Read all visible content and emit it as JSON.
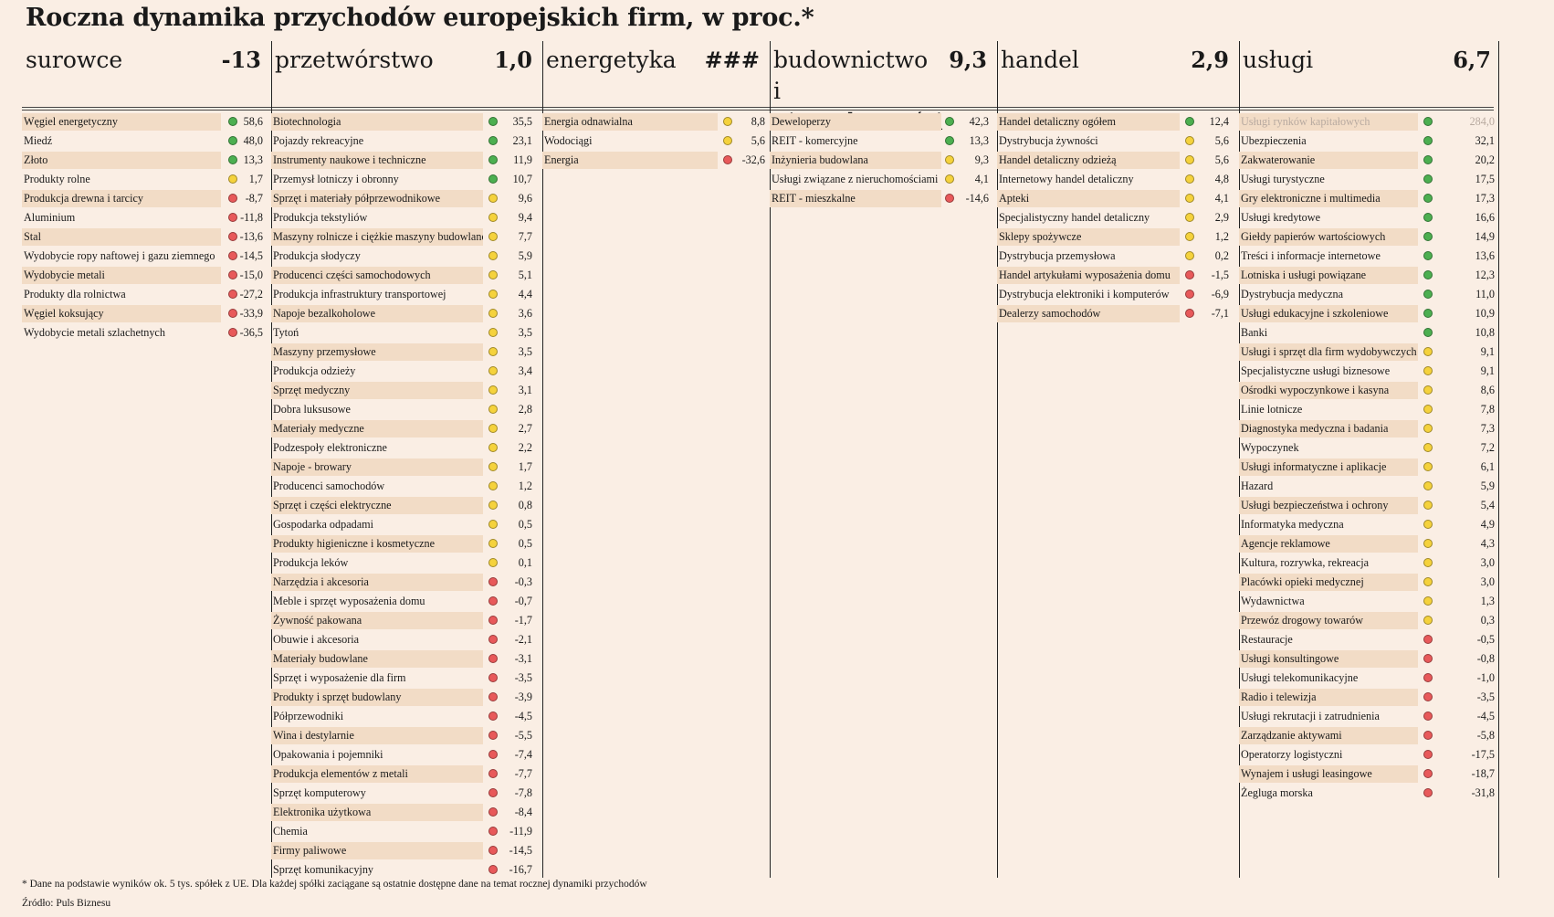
{
  "title": "Roczna dynamika przychodów europejskich firm, w proc.*",
  "colors": {
    "green": "#4caf50",
    "yellow": "#f5d23c",
    "red": "#e8595a",
    "row_shade": "#f2dcc6",
    "background": "#faeee4"
  },
  "columns": [
    {
      "name": "surowce",
      "value": "-13",
      "rows": [
        {
          "label": "Węgiel energetyczny",
          "value": "58,6",
          "status": "green"
        },
        {
          "label": "Miedź",
          "value": "48,0",
          "status": "green"
        },
        {
          "label": "Złoto",
          "value": "13,3",
          "status": "green"
        },
        {
          "label": "Produkty rolne",
          "value": "1,7",
          "status": "yellow"
        },
        {
          "label": "Produkcja drewna i tarcicy",
          "value": "-8,7",
          "status": "red"
        },
        {
          "label": "Aluminium",
          "value": "-11,8",
          "status": "red"
        },
        {
          "label": "Stal",
          "value": "-13,6",
          "status": "red"
        },
        {
          "label": "Wydobycie ropy naftowej i gazu ziemnego",
          "value": "-14,5",
          "status": "red"
        },
        {
          "label": "Wydobycie metali",
          "value": "-15,0",
          "status": "red"
        },
        {
          "label": "Produkty dla rolnictwa",
          "value": "-27,2",
          "status": "red"
        },
        {
          "label": "Węgiel koksujący",
          "value": "-33,9",
          "status": "red"
        },
        {
          "label": "Wydobycie metali szlachetnych",
          "value": "-36,5",
          "status": "red"
        }
      ]
    },
    {
      "name": "przetwórstwo",
      "value": "1,0",
      "rows": [
        {
          "label": "Biotechnologia",
          "value": "35,5",
          "status": "green"
        },
        {
          "label": "Pojazdy rekreacyjne",
          "value": "23,1",
          "status": "green"
        },
        {
          "label": "Instrumenty naukowe i techniczne",
          "value": "11,9",
          "status": "green"
        },
        {
          "label": "Przemysł lotniczy i obronny",
          "value": "10,7",
          "status": "green"
        },
        {
          "label": "Sprzęt i materiały półprzewodnikowe",
          "value": "9,6",
          "status": "yellow"
        },
        {
          "label": "Produkcja tekstyliów",
          "value": "9,4",
          "status": "yellow"
        },
        {
          "label": "Maszyny rolnicze i ciężkie maszyny budowlane",
          "value": "7,7",
          "status": "yellow"
        },
        {
          "label": "Produkcja słodyczy",
          "value": "5,9",
          "status": "yellow"
        },
        {
          "label": "Producenci części samochodowych",
          "value": "5,1",
          "status": "yellow"
        },
        {
          "label": "Produkcja infrastruktury transportowej",
          "value": "4,4",
          "status": "yellow"
        },
        {
          "label": "Napoje bezalkoholowe",
          "value": "3,6",
          "status": "yellow"
        },
        {
          "label": "Tytoń",
          "value": "3,5",
          "status": "yellow"
        },
        {
          "label": "Maszyny przemysłowe",
          "value": "3,5",
          "status": "yellow"
        },
        {
          "label": "Produkcja odzieży",
          "value": "3,4",
          "status": "yellow"
        },
        {
          "label": "Sprzęt medyczny",
          "value": "3,1",
          "status": "yellow"
        },
        {
          "label": "Dobra luksusowe",
          "value": "2,8",
          "status": "yellow"
        },
        {
          "label": "Materiały medyczne",
          "value": "2,7",
          "status": "yellow"
        },
        {
          "label": "Podzespoły elektroniczne",
          "value": "2,2",
          "status": "yellow"
        },
        {
          "label": "Napoje - browary",
          "value": "1,7",
          "status": "yellow"
        },
        {
          "label": "Producenci samochodów",
          "value": "1,2",
          "status": "yellow"
        },
        {
          "label": "Sprzęt i części elektryczne",
          "value": "0,8",
          "status": "yellow"
        },
        {
          "label": "Gospodarka odpadami",
          "value": "0,5",
          "status": "yellow"
        },
        {
          "label": "Produkty higieniczne i kosmetyczne",
          "value": "0,5",
          "status": "yellow"
        },
        {
          "label": "Produkcja leków",
          "value": "0,1",
          "status": "yellow"
        },
        {
          "label": "Narzędzia i akcesoria",
          "value": "-0,3",
          "status": "red"
        },
        {
          "label": "Meble i sprzęt wyposażenia domu",
          "value": "-0,7",
          "status": "red"
        },
        {
          "label": "Żywność pakowana",
          "value": "-1,7",
          "status": "red"
        },
        {
          "label": "Obuwie i akcesoria",
          "value": "-2,1",
          "status": "red"
        },
        {
          "label": "Materiały budowlane",
          "value": "-3,1",
          "status": "red"
        },
        {
          "label": "Sprzęt i wyposażenie dla firm",
          "value": "-3,5",
          "status": "red"
        },
        {
          "label": "Produkty i sprzęt budowlany",
          "value": "-3,9",
          "status": "red"
        },
        {
          "label": "Półprzewodniki",
          "value": "-4,5",
          "status": "red"
        },
        {
          "label": "Wina i destylarnie",
          "value": "-5,5",
          "status": "red"
        },
        {
          "label": "Opakowania i pojemniki",
          "value": "-7,4",
          "status": "red"
        },
        {
          "label": "Produkcja elementów z metali",
          "value": "-7,7",
          "status": "red"
        },
        {
          "label": "Sprzęt komputerowy",
          "value": "-7,8",
          "status": "red"
        },
        {
          "label": "Elektronika użytkowa",
          "value": "-8,4",
          "status": "red"
        },
        {
          "label": "Chemia",
          "value": "-11,9",
          "status": "red"
        },
        {
          "label": "Firmy paliwowe",
          "value": "-14,5",
          "status": "red"
        },
        {
          "label": "Sprzęt komunikacyjny",
          "value": "-16,7",
          "status": "red"
        }
      ]
    },
    {
      "name": "energetyka",
      "value": "###",
      "rows": [
        {
          "label": "Energia odnawialna",
          "value": "8,8",
          "status": "yellow"
        },
        {
          "label": "Wodociągi",
          "value": "5,6",
          "status": "yellow"
        },
        {
          "label": "Energia",
          "value": "-32,6",
          "status": "red"
        }
      ]
    },
    {
      "name": "budownictwo i nieruchomości",
      "value": "9,3",
      "rows": [
        {
          "label": "Deweloperzy",
          "value": "42,3",
          "status": "green"
        },
        {
          "label": "REIT - komercyjne",
          "value": "13,3",
          "status": "green"
        },
        {
          "label": "Inżynieria budowlana",
          "value": "9,3",
          "status": "yellow"
        },
        {
          "label": "Usługi związane z nieruchomościami",
          "value": "4,1",
          "status": "yellow"
        },
        {
          "label": "REIT - mieszkalne",
          "value": "-14,6",
          "status": "red"
        }
      ]
    },
    {
      "name": "handel",
      "value": "2,9",
      "rows": [
        {
          "label": "Handel detaliczny ogółem",
          "value": "12,4",
          "status": "green"
        },
        {
          "label": "Dystrybucja żywności",
          "value": "5,6",
          "status": "yellow"
        },
        {
          "label": "Handel detaliczny odzieżą",
          "value": "5,6",
          "status": "yellow"
        },
        {
          "label": "Internetowy handel detaliczny",
          "value": "4,8",
          "status": "yellow"
        },
        {
          "label": "Apteki",
          "value": "4,1",
          "status": "yellow"
        },
        {
          "label": "Specjalistyczny handel detaliczny",
          "value": "2,9",
          "status": "yellow"
        },
        {
          "label": "Sklepy spożywcze",
          "value": "1,2",
          "status": "yellow"
        },
        {
          "label": "Dystrybucja przemysłowa",
          "value": "0,2",
          "status": "yellow"
        },
        {
          "label": "Handel artykułami wyposażenia domu",
          "value": "-1,5",
          "status": "red"
        },
        {
          "label": "Dystrybucja elektroniki i komputerów",
          "value": "-6,9",
          "status": "red"
        },
        {
          "label": "Dealerzy samochodów",
          "value": "-7,1",
          "status": "red"
        }
      ]
    },
    {
      "name": "usługi",
      "value": "6,7",
      "rows": [
        {
          "label": "Usługi rynków kapitałowych",
          "value": "284,0",
          "status": "green",
          "faded": true
        },
        {
          "label": "Ubezpieczenia",
          "value": "32,1",
          "status": "green"
        },
        {
          "label": "Zakwaterowanie",
          "value": "20,2",
          "status": "green"
        },
        {
          "label": "Usługi turystyczne",
          "value": "17,5",
          "status": "green"
        },
        {
          "label": "Gry elektroniczne i multimedia",
          "value": "17,3",
          "status": "green"
        },
        {
          "label": "Usługi kredytowe",
          "value": "16,6",
          "status": "green"
        },
        {
          "label": "Giełdy papierów wartościowych",
          "value": "14,9",
          "status": "green"
        },
        {
          "label": "Treści i informacje internetowe",
          "value": "13,6",
          "status": "green"
        },
        {
          "label": "Lotniska i usługi powiązane",
          "value": "12,3",
          "status": "green"
        },
        {
          "label": "Dystrybucja medyczna",
          "value": "11,0",
          "status": "green"
        },
        {
          "label": "Usługi edukacyjne i szkoleniowe",
          "value": "10,9",
          "status": "green"
        },
        {
          "label": "Banki",
          "value": "10,8",
          "status": "green"
        },
        {
          "label": "Usługi i sprzęt dla firm wydobywczych",
          "value": "9,1",
          "status": "yellow"
        },
        {
          "label": "Specjalistyczne usługi biznesowe",
          "value": "9,1",
          "status": "yellow"
        },
        {
          "label": "Ośrodki wypoczynkowe i kasyna",
          "value": "8,6",
          "status": "yellow"
        },
        {
          "label": "Linie lotnicze",
          "value": "7,8",
          "status": "yellow"
        },
        {
          "label": "Diagnostyka medyczna i badania",
          "value": "7,3",
          "status": "yellow"
        },
        {
          "label": "Wypoczynek",
          "value": "7,2",
          "status": "yellow"
        },
        {
          "label": "Usługi informatyczne i aplikacje",
          "value": "6,1",
          "status": "yellow"
        },
        {
          "label": "Hazard",
          "value": "5,9",
          "status": "yellow"
        },
        {
          "label": "Usługi bezpieczeństwa i ochrony",
          "value": "5,4",
          "status": "yellow"
        },
        {
          "label": "Informatyka medyczna",
          "value": "4,9",
          "status": "yellow"
        },
        {
          "label": "Agencje reklamowe",
          "value": "4,3",
          "status": "yellow"
        },
        {
          "label": "Kultura, rozrywka, rekreacja",
          "value": "3,0",
          "status": "yellow"
        },
        {
          "label": "Placówki opieki medycznej",
          "value": "3,0",
          "status": "yellow"
        },
        {
          "label": "Wydawnictwa",
          "value": "1,3",
          "status": "yellow"
        },
        {
          "label": "Przewóz drogowy towarów",
          "value": "0,3",
          "status": "yellow"
        },
        {
          "label": "Restauracje",
          "value": "-0,5",
          "status": "red"
        },
        {
          "label": "Usługi konsultingowe",
          "value": "-0,8",
          "status": "red"
        },
        {
          "label": "Usługi telekomunikacyjne",
          "value": "-1,0",
          "status": "red"
        },
        {
          "label": "Radio i telewizja",
          "value": "-3,5",
          "status": "red"
        },
        {
          "label": "Usługi rekrutacji i zatrudnienia",
          "value": "-4,5",
          "status": "red"
        },
        {
          "label": "Zarządzanie aktywami",
          "value": "-5,8",
          "status": "red"
        },
        {
          "label": "Operatorzy logistyczni",
          "value": "-17,5",
          "status": "red"
        },
        {
          "label": "Wynajem i usługi leasingowe",
          "value": "-18,7",
          "status": "red"
        },
        {
          "label": "Żegluga morska",
          "value": "-31,8",
          "status": "red"
        }
      ]
    }
  ],
  "footnote": "* Dane na podstawie wyników ok. 5 tys. spółek z UE. Dla każdej spółki zaciągane są ostatnie dostępne dane na temat rocznej dynamiki przychodów",
  "source": "Źródło: Puls Biznesu"
}
